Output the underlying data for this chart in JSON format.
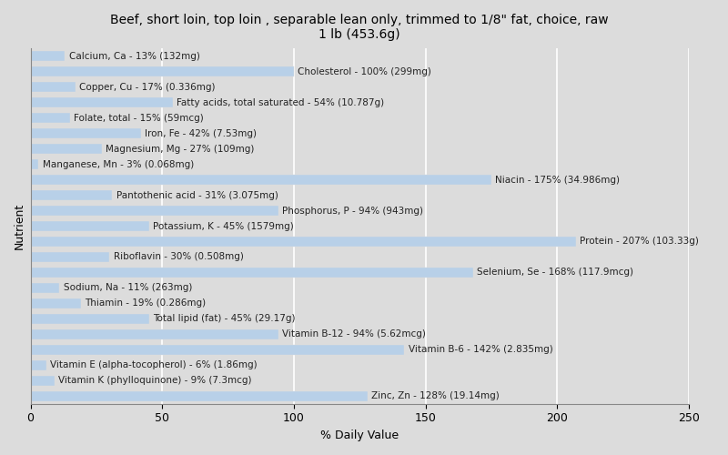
{
  "title": "Beef, short loin, top loin , separable lean only, trimmed to 1/8\" fat, choice, raw\n1 lb (453.6g)",
  "xlabel": "% Daily Value",
  "ylabel": "Nutrient",
  "background_color": "#dcdcdc",
  "plot_bg_color": "#dcdcdc",
  "bar_color": "#b8d0e8",
  "xlim": [
    0,
    250
  ],
  "xticks": [
    0,
    50,
    100,
    150,
    200,
    250
  ],
  "nutrients": [
    "Calcium, Ca - 13% (132mg)",
    "Cholesterol - 100% (299mg)",
    "Copper, Cu - 17% (0.336mg)",
    "Fatty acids, total saturated - 54% (10.787g)",
    "Folate, total - 15% (59mcg)",
    "Iron, Fe - 42% (7.53mg)",
    "Magnesium, Mg - 27% (109mg)",
    "Manganese, Mn - 3% (0.068mg)",
    "Niacin - 175% (34.986mg)",
    "Pantothenic acid - 31% (3.075mg)",
    "Phosphorus, P - 94% (943mg)",
    "Potassium, K - 45% (1579mg)",
    "Protein - 207% (103.33g)",
    "Riboflavin - 30% (0.508mg)",
    "Selenium, Se - 168% (117.9mcg)",
    "Sodium, Na - 11% (263mg)",
    "Thiamin - 19% (0.286mg)",
    "Total lipid (fat) - 45% (29.17g)",
    "Vitamin B-12 - 94% (5.62mcg)",
    "Vitamin B-6 - 142% (2.835mg)",
    "Vitamin E (alpha-tocopherol) - 6% (1.86mg)",
    "Vitamin K (phylloquinone) - 9% (7.3mcg)",
    "Zinc, Zn - 128% (19.14mg)"
  ],
  "values": [
    13,
    100,
    17,
    54,
    15,
    42,
    27,
    3,
    175,
    31,
    94,
    45,
    207,
    30,
    168,
    11,
    19,
    45,
    94,
    142,
    6,
    9,
    128
  ],
  "grid_color": "#ffffff",
  "title_fontsize": 10,
  "axis_fontsize": 9,
  "tick_fontsize": 9,
  "bar_label_fontsize": 7.5
}
